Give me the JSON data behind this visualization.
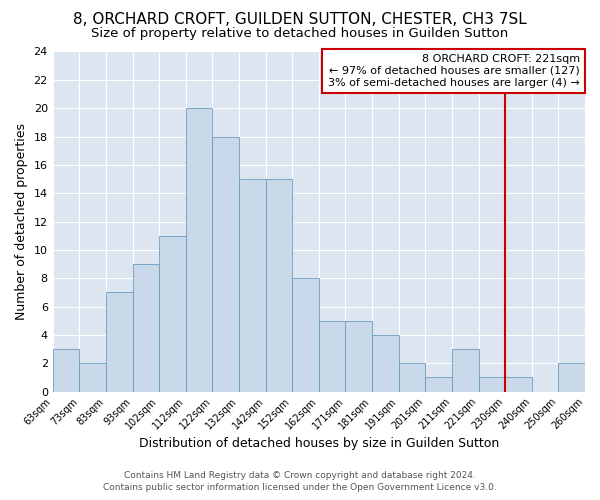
{
  "title": "8, ORCHARD CROFT, GUILDEN SUTTON, CHESTER, CH3 7SL",
  "subtitle": "Size of property relative to detached houses in Guilden Sutton",
  "xlabel": "Distribution of detached houses by size in Guilden Sutton",
  "ylabel": "Number of detached properties",
  "bar_values": [
    3,
    2,
    7,
    9,
    11,
    20,
    18,
    15,
    15,
    8,
    5,
    5,
    4,
    2,
    1,
    3,
    1,
    1,
    0,
    2
  ],
  "xtick_labels": [
    "63sqm",
    "73sqm",
    "83sqm",
    "93sqm",
    "102sqm",
    "112sqm",
    "122sqm",
    "132sqm",
    "142sqm",
    "152sqm",
    "162sqm",
    "171sqm",
    "181sqm",
    "191sqm",
    "201sqm",
    "211sqm",
    "221sqm",
    "230sqm",
    "240sqm",
    "250sqm",
    "260sqm"
  ],
  "bar_color": "#c9d9ea",
  "bar_edge_color": "#6a9cbf",
  "fig_background_color": "#ffffff",
  "plot_background_color": "#dde6f0",
  "grid_color": "#ffffff",
  "red_line_index": 16,
  "red_line_color": "#cc0000",
  "annotation_title": "8 ORCHARD CROFT: 221sqm",
  "annotation_line1": "← 97% of detached houses are smaller (127)",
  "annotation_line2": "3% of semi-detached houses are larger (4) →",
  "annotation_box_color": "#ffffff",
  "annotation_box_edge_color": "#cc0000",
  "ylim": [
    0,
    24
  ],
  "yticks": [
    0,
    2,
    4,
    6,
    8,
    10,
    12,
    14,
    16,
    18,
    20,
    22,
    24
  ],
  "footer_line1": "Contains HM Land Registry data © Crown copyright and database right 2024.",
  "footer_line2": "Contains public sector information licensed under the Open Government Licence v3.0.",
  "title_fontsize": 11,
  "subtitle_fontsize": 9.5,
  "xlabel_fontsize": 9,
  "ylabel_fontsize": 9,
  "annotation_fontsize": 8
}
